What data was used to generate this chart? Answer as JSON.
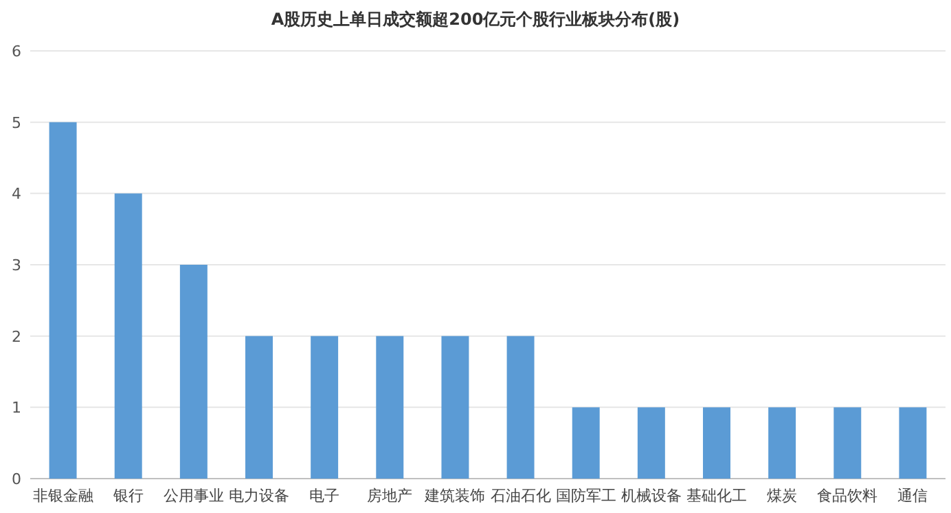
{
  "chart_data": {
    "type": "bar",
    "title": "A股历史上单日成交额超200亿元个股行业板块分布(股)",
    "categories": [
      "非银金融",
      "银行",
      "公用事业",
      "电力设备",
      "电子",
      "房地产",
      "建筑装饰",
      "石油石化",
      "国防军工",
      "机械设备",
      "基础化工",
      "煤炭",
      "食品饮料",
      "通信"
    ],
    "values": [
      5,
      4,
      3,
      2,
      2,
      2,
      2,
      2,
      1,
      1,
      1,
      1,
      1,
      1
    ],
    "color": "#5b9bd5",
    "ylim": [
      0,
      6
    ],
    "yticks": [
      0,
      1,
      2,
      3,
      4,
      5,
      6
    ],
    "grid": "y"
  }
}
